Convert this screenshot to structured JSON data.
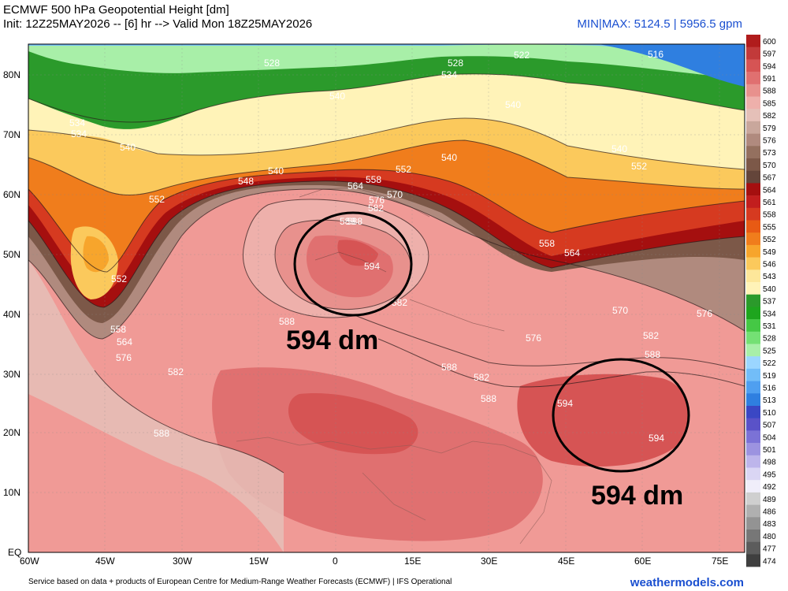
{
  "header": {
    "title": "ECMWF 500 hPa Geopotential Height [dm]",
    "subtitle": "Init: 12Z25MAY2026 -- [6] hr --> Valid Mon 18Z25MAY2026",
    "minmax": "MIN|MAX: 5124.5 | 5956.5 gpm"
  },
  "footer": {
    "credit": "Service based on data + products of European Centre for Medium-Range Weather Forecasts (ECMWF) | IFS Operational",
    "brand": "weathermodels.com"
  },
  "axes": {
    "lat_labels": [
      "80N",
      "70N",
      "60N",
      "50N",
      "40N",
      "30N",
      "20N",
      "10N",
      "EQ"
    ],
    "lon_labels": [
      "60W",
      "45W",
      "30W",
      "15W",
      "0",
      "15E",
      "30E",
      "45E",
      "60E",
      "75E"
    ]
  },
  "annotations": {
    "north_circle": "594 dm",
    "south_circle": "594 dm"
  },
  "contour_labels": [
    "528",
    "528",
    "522",
    "516",
    "534",
    "534",
    "540",
    "540",
    "540",
    "540",
    "534",
    "540",
    "548",
    "552",
    "552",
    "540",
    "552",
    "564",
    "558",
    "570",
    "576",
    "582",
    "588",
    "594",
    "558",
    "564",
    "552",
    "558",
    "564",
    "576",
    "582",
    "588",
    "588",
    "582",
    "588",
    "576",
    "570",
    "576",
    "582",
    "588",
    "582",
    "588",
    "594",
    "594",
    "588"
  ],
  "colorbar": {
    "values": [
      "600",
      "597",
      "594",
      "591",
      "588",
      "585",
      "582",
      "579",
      "576",
      "573",
      "570",
      "567",
      "564",
      "561",
      "558",
      "555",
      "552",
      "549",
      "546",
      "543",
      "540",
      "537",
      "534",
      "531",
      "528",
      "525",
      "522",
      "519",
      "516",
      "513",
      "510",
      "507",
      "504",
      "501",
      "498",
      "495",
      "492",
      "489",
      "486",
      "483",
      "480",
      "477",
      "474"
    ],
    "colors": [
      "#b01c1c",
      "#c23a3a",
      "#d65454",
      "#e07070",
      "#e8918d",
      "#eeb0ab",
      "#e5c0b8",
      "#c9a79c",
      "#b08a7e",
      "#94705f",
      "#7c5848",
      "#64453a",
      "#a50f0f",
      "#c21e1e",
      "#d63a20",
      "#e85a14",
      "#f07d1c",
      "#f7a52c",
      "#fbc95c",
      "#fde79a",
      "#fff3b8",
      "#2b9a2b",
      "#1ea51e",
      "#45c845",
      "#74e074",
      "#a8efa8",
      "#9bd6ff",
      "#72bdf8",
      "#4f9ff0",
      "#2f7fe0",
      "#3a47c4",
      "#5a52c8",
      "#7b72d6",
      "#9c93e0",
      "#bdb5eb",
      "#dad6f4",
      "#f0eefa",
      "#cfcfcf",
      "#b0b0b0",
      "#939393",
      "#777777",
      "#5c5c5c",
      "#3f3f3f"
    ]
  }
}
